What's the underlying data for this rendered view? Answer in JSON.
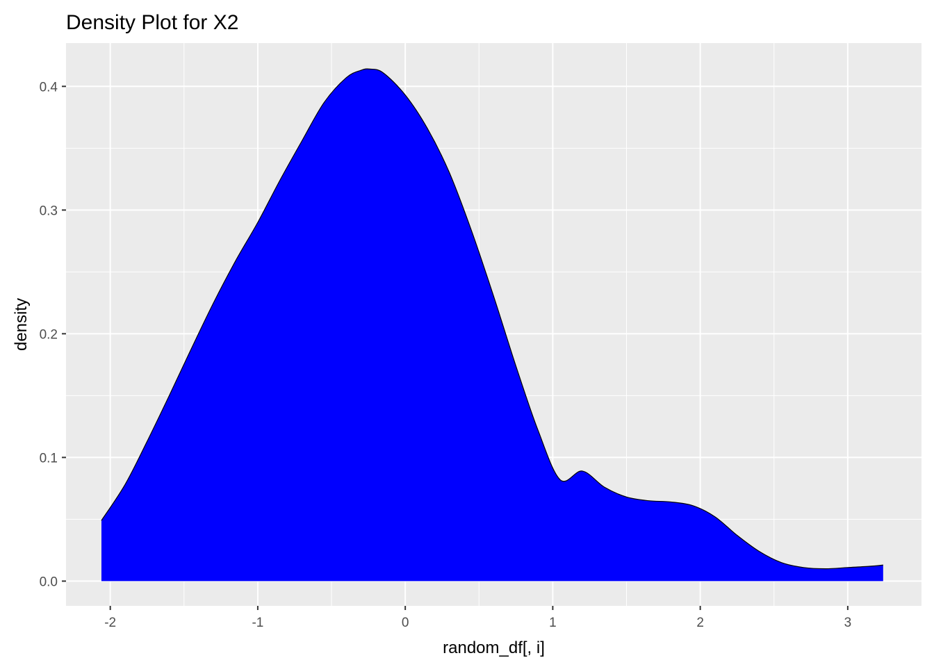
{
  "chart_data": {
    "type": "area",
    "title": "Density Plot for X2",
    "xlabel": "random_df[, i]",
    "ylabel": "density",
    "xlim": [
      -2.3,
      3.5
    ],
    "ylim": [
      -0.02,
      0.435
    ],
    "x_ticks": [
      -2,
      -1,
      0,
      1,
      2,
      3
    ],
    "x_tick_labels": [
      "-2",
      "-1",
      "0",
      "1",
      "2",
      "3"
    ],
    "y_ticks": [
      0.0,
      0.1,
      0.2,
      0.3,
      0.4
    ],
    "y_tick_labels": [
      "0.0",
      "0.1",
      "0.2",
      "0.3",
      "0.4"
    ],
    "grid": true,
    "colors": {
      "panel_background": "#ebebeb",
      "grid_line": "#ffffff",
      "fill": "#0000ff",
      "outline": "#000000",
      "tick_text": "#4d4d4d",
      "tick_mark": "#333333"
    },
    "series": [
      {
        "x": [
          -2.06,
          -1.9,
          -1.75,
          -1.6,
          -1.45,
          -1.3,
          -1.15,
          -1.0,
          -0.85,
          -0.7,
          -0.55,
          -0.4,
          -0.3,
          -0.24,
          -0.15,
          0.0,
          0.15,
          0.3,
          0.45,
          0.6,
          0.75,
          0.9,
          1.05,
          1.2,
          1.35,
          1.5,
          1.65,
          1.8,
          1.95,
          2.1,
          2.25,
          2.4,
          2.55,
          2.7,
          2.85,
          3.0,
          3.15,
          3.24
        ],
        "y": [
          0.049,
          0.078,
          0.113,
          0.15,
          0.188,
          0.225,
          0.259,
          0.29,
          0.324,
          0.356,
          0.387,
          0.407,
          0.413,
          0.414,
          0.411,
          0.393,
          0.366,
          0.33,
          0.283,
          0.23,
          0.174,
          0.122,
          0.082,
          0.089,
          0.076,
          0.068,
          0.065,
          0.064,
          0.061,
          0.052,
          0.037,
          0.024,
          0.015,
          0.011,
          0.01,
          0.011,
          0.012,
          0.013
        ]
      }
    ]
  }
}
